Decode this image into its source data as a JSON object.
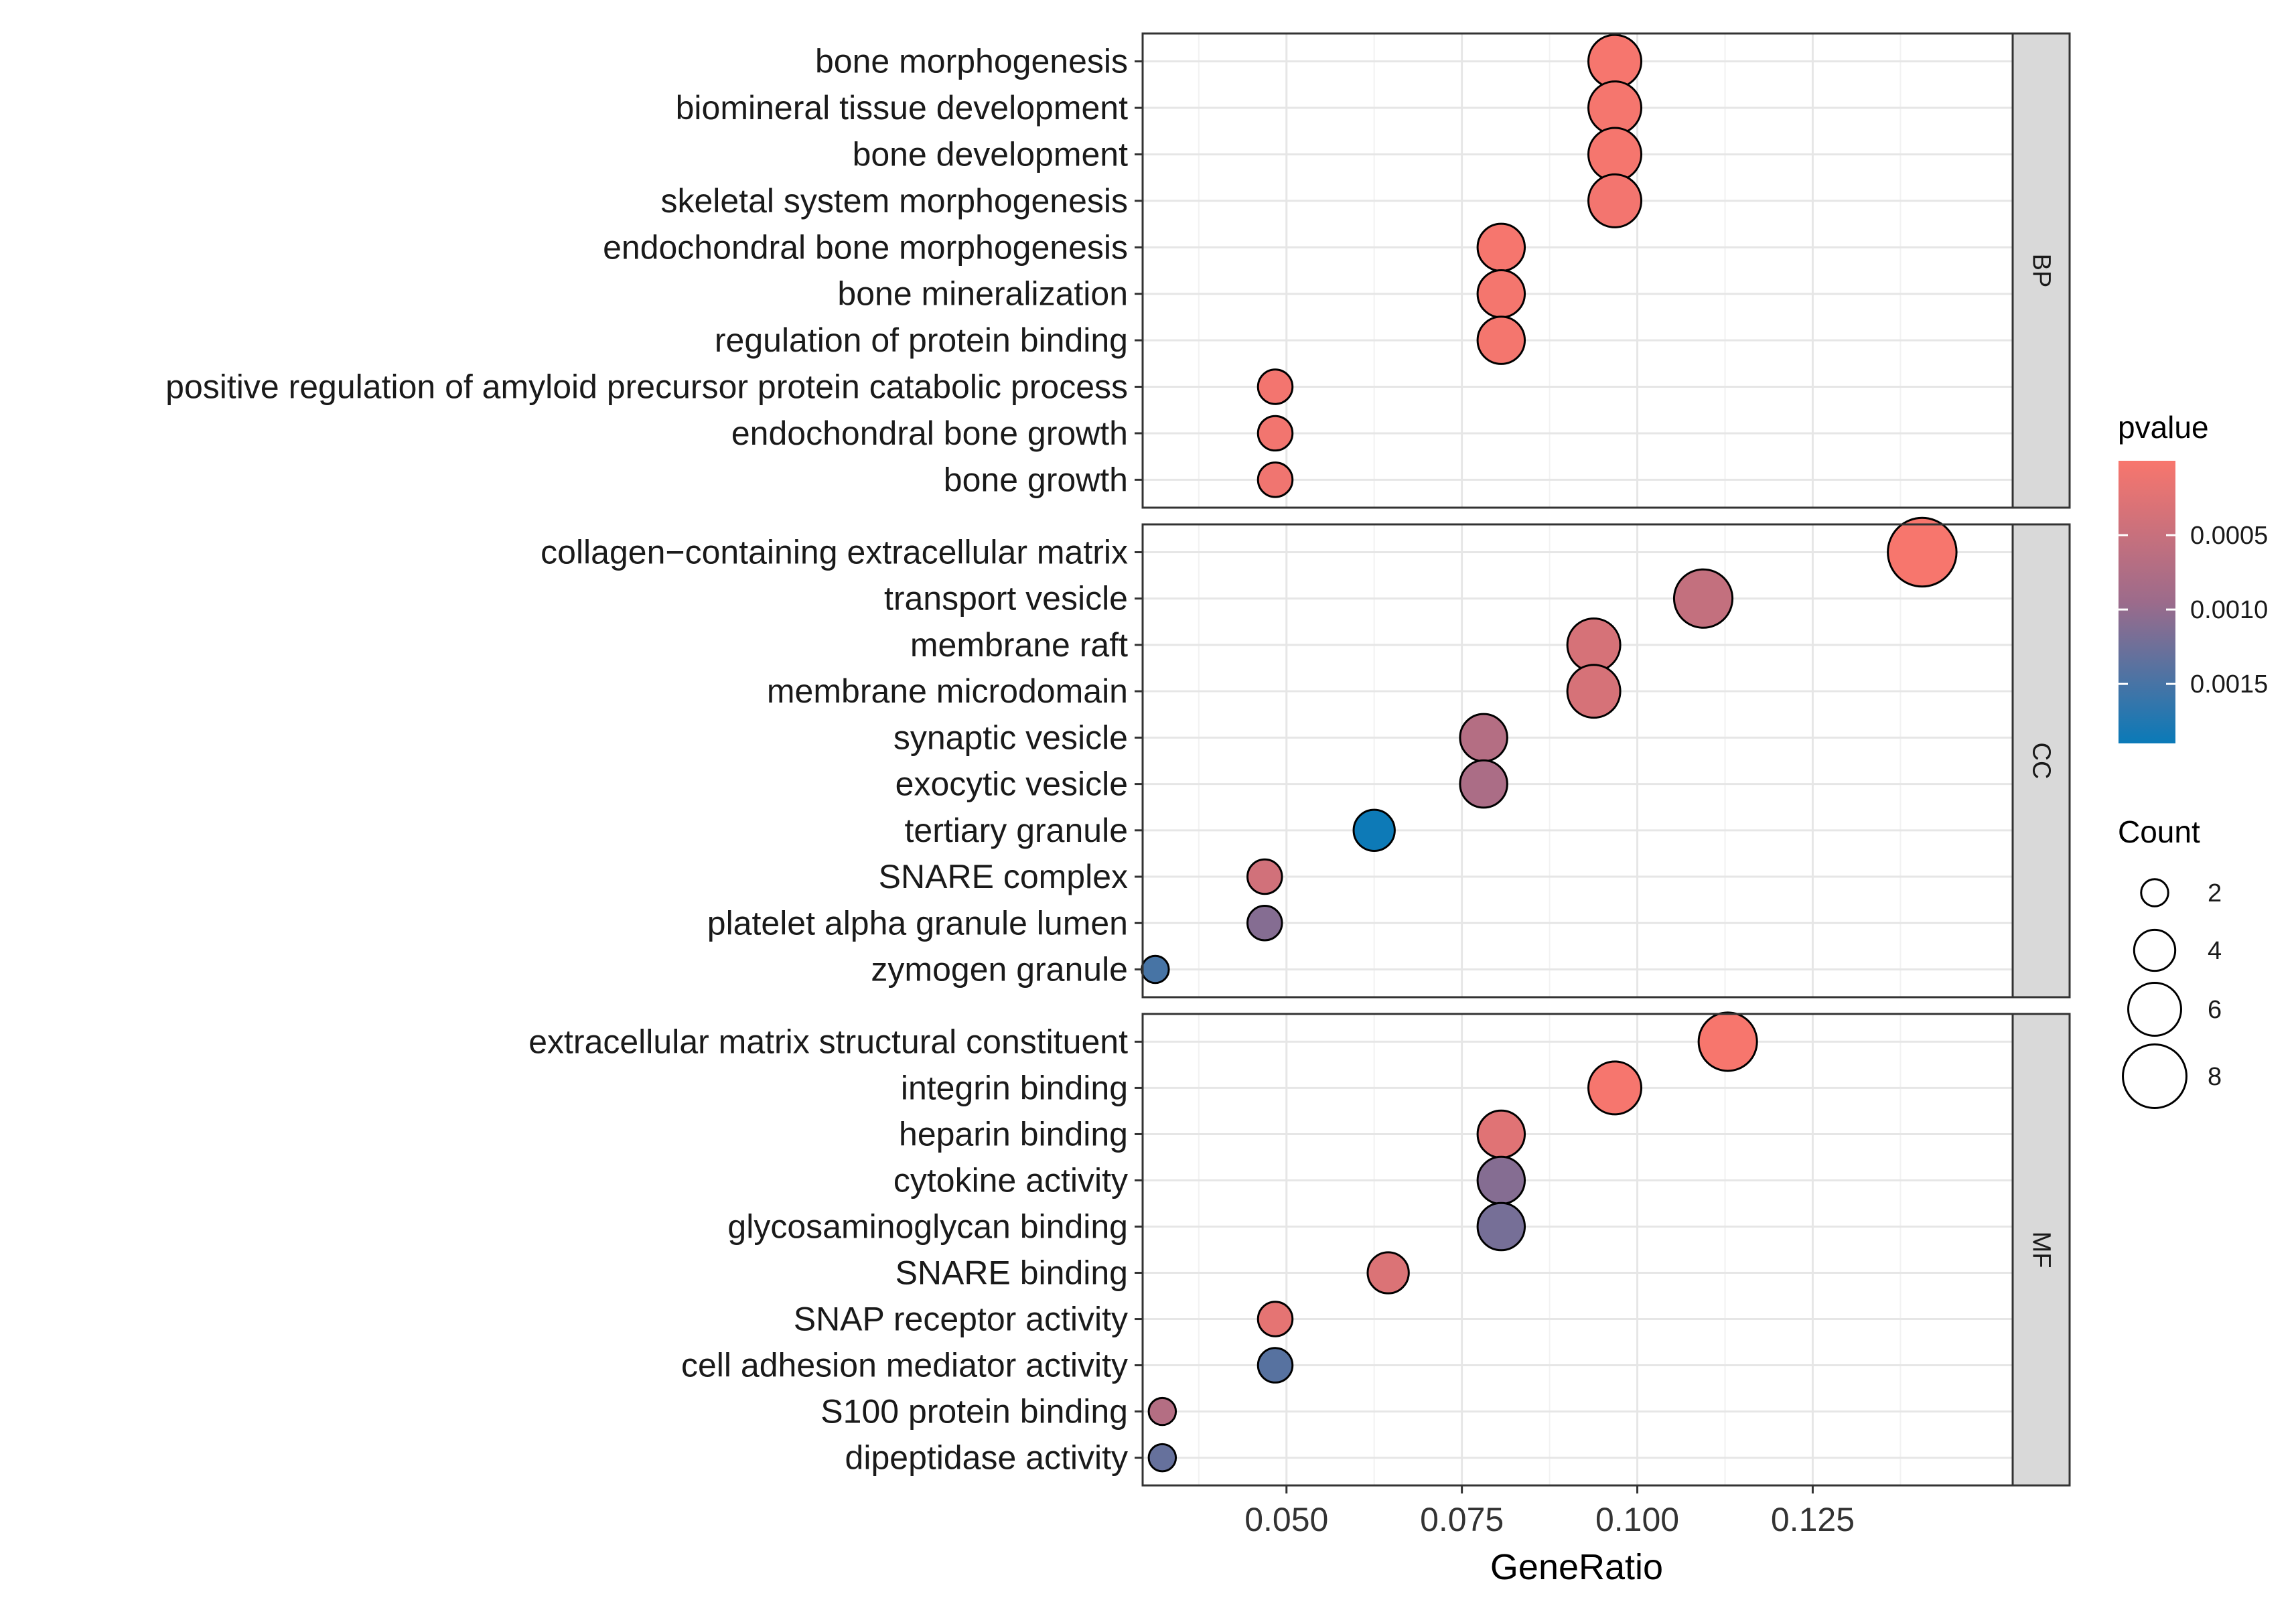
{
  "chart_data": {
    "type": "scatter",
    "xlabel": "GeneRatio",
    "xlim": [
      0.0295,
      0.1535
    ],
    "xticks": [
      {
        "value": 0.05,
        "label": "0.050"
      },
      {
        "value": 0.075,
        "label": "0.075"
      },
      {
        "value": 0.1,
        "label": "0.100"
      },
      {
        "value": 0.125,
        "label": "0.125"
      }
    ],
    "grid": true,
    "facets": [
      {
        "name": "BP",
        "terms": [
          {
            "label": "bone morphogenesis",
            "x": 0.0968,
            "count": 6,
            "pvalue": 2e-05
          },
          {
            "label": "biomineral tissue development",
            "x": 0.0968,
            "count": 6,
            "pvalue": 3e-05
          },
          {
            "label": "bone development",
            "x": 0.0968,
            "count": 6,
            "pvalue": 3e-05
          },
          {
            "label": "skeletal system morphogenesis",
            "x": 0.0968,
            "count": 6,
            "pvalue": 5e-05
          },
          {
            "label": "endochondral bone morphogenesis",
            "x": 0.0806,
            "count": 5,
            "pvalue": 2e-05
          },
          {
            "label": "bone mineralization",
            "x": 0.0806,
            "count": 5,
            "pvalue": 4e-05
          },
          {
            "label": "regulation of protein binding",
            "x": 0.0806,
            "count": 5,
            "pvalue": 4e-05
          },
          {
            "label": "positive regulation of amyloid precursor protein catabolic process",
            "x": 0.0484,
            "count": 3,
            "pvalue": 5e-05
          },
          {
            "label": "endochondral bone growth",
            "x": 0.0484,
            "count": 3,
            "pvalue": 6e-05
          },
          {
            "label": "bone growth",
            "x": 0.0484,
            "count": 3,
            "pvalue": 8e-05
          }
        ]
      },
      {
        "name": "CC",
        "terms": [
          {
            "label": "collagen−containing extracellular matrix",
            "x": 0.1406,
            "count": 9,
            "pvalue": 1e-05
          },
          {
            "label": "transport vesicle",
            "x": 0.1094,
            "count": 7,
            "pvalue": 0.00055
          },
          {
            "label": "membrane raft",
            "x": 0.0938,
            "count": 6,
            "pvalue": 0.00035
          },
          {
            "label": "membrane microdomain",
            "x": 0.0938,
            "count": 6,
            "pvalue": 0.00035
          },
          {
            "label": "synaptic vesicle",
            "x": 0.0781,
            "count": 5,
            "pvalue": 0.0007
          },
          {
            "label": "exocytic vesicle",
            "x": 0.0781,
            "count": 5,
            "pvalue": 0.0008
          },
          {
            "label": "tertiary granule",
            "x": 0.0625,
            "count": 4,
            "pvalue": 0.00188
          },
          {
            "label": "SNARE complex",
            "x": 0.0469,
            "count": 3,
            "pvalue": 0.0004
          },
          {
            "label": "platelet alpha granule lumen",
            "x": 0.0469,
            "count": 3,
            "pvalue": 0.0011
          },
          {
            "label": "zymogen granule",
            "x": 0.0313,
            "count": 2,
            "pvalue": 0.0015
          }
        ]
      },
      {
        "name": "MF",
        "terms": [
          {
            "label": "extracellular matrix structural constituent",
            "x": 0.1129,
            "count": 7,
            "pvalue": 1e-05
          },
          {
            "label": "integrin binding",
            "x": 0.0968,
            "count": 6,
            "pvalue": 2e-05
          },
          {
            "label": "heparin binding",
            "x": 0.0806,
            "count": 5,
            "pvalue": 0.00025
          },
          {
            "label": "cytokine activity",
            "x": 0.0806,
            "count": 5,
            "pvalue": 0.0011
          },
          {
            "label": "glycosaminoglycan binding",
            "x": 0.0806,
            "count": 5,
            "pvalue": 0.0012
          },
          {
            "label": "SNARE binding",
            "x": 0.0645,
            "count": 4,
            "pvalue": 0.0003
          },
          {
            "label": "SNAP receptor activity",
            "x": 0.0484,
            "count": 3,
            "pvalue": 0.0002
          },
          {
            "label": "cell adhesion mediator activity",
            "x": 0.0484,
            "count": 3,
            "pvalue": 0.0014
          },
          {
            "label": "S100 protein binding",
            "x": 0.0323,
            "count": 2,
            "pvalue": 0.0007
          },
          {
            "label": "dipeptidase activity",
            "x": 0.0323,
            "count": 2,
            "pvalue": 0.0013
          }
        ]
      }
    ],
    "color_legend": {
      "title": "pvalue",
      "range": [
        0.0,
        0.0019
      ],
      "ticks": [
        {
          "value": 0.0005,
          "label": "0.0005"
        },
        {
          "value": 0.001,
          "label": "0.0010"
        },
        {
          "value": 0.0015,
          "label": "0.0015"
        }
      ],
      "low_color": "#f8766d",
      "mid_color": "#9c6b8b",
      "high_color": "#0a7ab8"
    },
    "size_legend": {
      "title": "Count",
      "values": [
        2,
        4,
        6,
        8
      ],
      "labels": [
        "2",
        "4",
        "6",
        "8"
      ]
    },
    "legend_position": "right"
  }
}
